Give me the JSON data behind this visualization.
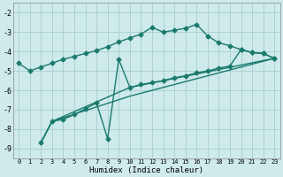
{
  "xlabel": "Humidex (Indice chaleur)",
  "bg_color": "#ceeaea",
  "grid_color": "#a8cece",
  "line_color": "#1a7a6e",
  "xlim": [
    -0.5,
    23.5
  ],
  "ylim": [
    -9.5,
    -1.5
  ],
  "xticks": [
    0,
    1,
    2,
    3,
    4,
    5,
    6,
    7,
    8,
    9,
    10,
    11,
    12,
    13,
    14,
    15,
    16,
    17,
    18,
    19,
    20,
    21,
    22,
    23
  ],
  "yticks": [
    -9,
    -8,
    -7,
    -6,
    -5,
    -4,
    -3,
    -2
  ],
  "line1_x": [
    0,
    1,
    2,
    3,
    4,
    5,
    6,
    7,
    8,
    9,
    10,
    11,
    12,
    13,
    14,
    15,
    16,
    17,
    18,
    19,
    20,
    21,
    22,
    23
  ],
  "line1_y": [
    -4.6,
    -5.0,
    -4.8,
    -4.6,
    -4.4,
    -4.25,
    -4.1,
    -3.95,
    -3.75,
    -3.5,
    -3.3,
    -3.1,
    -2.75,
    -3.0,
    -2.9,
    -2.8,
    -2.6,
    -3.2,
    -3.55,
    -3.7,
    -3.9,
    -4.05,
    -4.1,
    -4.35
  ],
  "line2_x": [
    2,
    3,
    4,
    5,
    6,
    7,
    8,
    9,
    10,
    11,
    12,
    13,
    14,
    15,
    16,
    17,
    18,
    19,
    20,
    21,
    22,
    23
  ],
  "line2_y": [
    -8.7,
    -7.6,
    -7.5,
    -7.25,
    -6.95,
    -6.65,
    -8.5,
    -4.4,
    -5.85,
    -5.7,
    -5.6,
    -5.5,
    -5.35,
    -5.25,
    -5.1,
    -5.0,
    -4.85,
    -4.75,
    -3.9,
    -4.05,
    -4.1,
    -4.35
  ],
  "line3_x": [
    2,
    3,
    10,
    23
  ],
  "line3_y": [
    -8.7,
    -7.6,
    -6.3,
    -4.35
  ],
  "line4_x": [
    2,
    3,
    10,
    23
  ],
  "line4_y": [
    -8.7,
    -7.6,
    -5.85,
    -4.35
  ],
  "marker": "D",
  "markersize": 2.5,
  "linewidth": 1.0
}
